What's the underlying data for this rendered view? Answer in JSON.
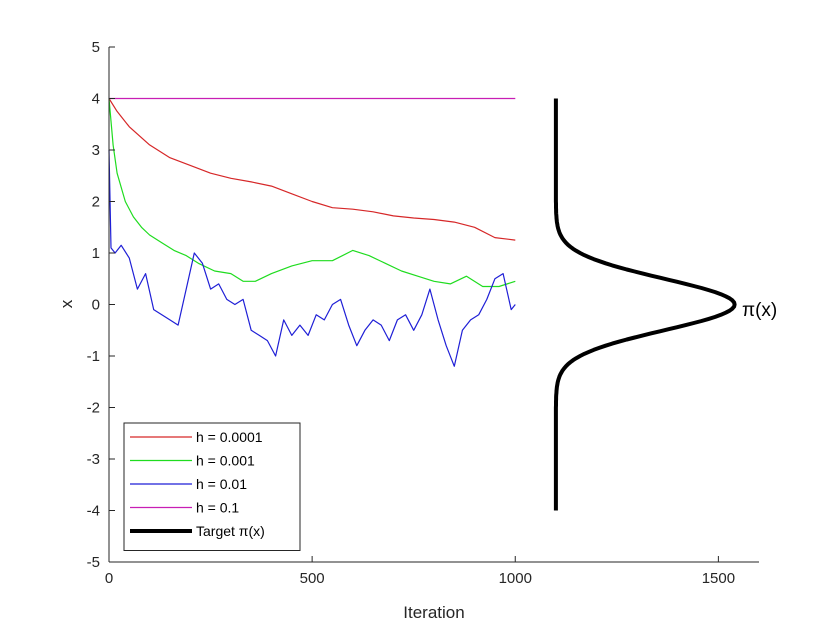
{
  "chart_data": {
    "type": "line",
    "title": "",
    "xlabel": "Iteration",
    "ylabel": "x",
    "xlim": [
      0,
      1600
    ],
    "ylim": [
      -5,
      5
    ],
    "xticks": [
      0,
      500,
      1000,
      1500
    ],
    "yticks": [
      -5,
      -4,
      -3,
      -2,
      -1,
      0,
      1,
      2,
      3,
      4,
      5
    ],
    "grid": false,
    "legend_position": "bottom-left",
    "series": [
      {
        "name": "h = 0.0001",
        "color": "#d62728",
        "x": [
          0,
          20,
          50,
          100,
          150,
          200,
          250,
          300,
          350,
          400,
          450,
          500,
          550,
          600,
          650,
          700,
          750,
          800,
          850,
          900,
          950,
          1000
        ],
        "values": [
          4.0,
          3.75,
          3.45,
          3.1,
          2.85,
          2.7,
          2.55,
          2.45,
          2.38,
          2.3,
          2.15,
          2.0,
          1.88,
          1.85,
          1.8,
          1.72,
          1.68,
          1.65,
          1.6,
          1.5,
          1.3,
          1.25
        ]
      },
      {
        "name": "h = 0.001",
        "color": "#1fdc1f",
        "x": [
          0,
          10,
          20,
          40,
          60,
          80,
          100,
          130,
          160,
          190,
          220,
          260,
          300,
          330,
          360,
          400,
          450,
          500,
          550,
          600,
          640,
          680,
          720,
          760,
          800,
          840,
          880,
          920,
          960,
          1000
        ],
        "values": [
          4.0,
          3.1,
          2.55,
          2.0,
          1.7,
          1.5,
          1.35,
          1.2,
          1.05,
          0.95,
          0.8,
          0.65,
          0.6,
          0.45,
          0.45,
          0.6,
          0.75,
          0.85,
          0.85,
          1.05,
          0.95,
          0.8,
          0.65,
          0.55,
          0.45,
          0.4,
          0.55,
          0.35,
          0.35,
          0.45
        ]
      },
      {
        "name": "h = 0.01",
        "color": "#1f1fd6",
        "x": [
          0,
          5,
          15,
          30,
          50,
          70,
          90,
          110,
          130,
          150,
          170,
          190,
          210,
          230,
          250,
          270,
          290,
          310,
          330,
          350,
          370,
          390,
          410,
          430,
          450,
          470,
          490,
          510,
          530,
          550,
          570,
          590,
          610,
          630,
          650,
          670,
          690,
          710,
          730,
          750,
          770,
          790,
          810,
          830,
          850,
          870,
          890,
          910,
          930,
          950,
          970,
          990,
          1000
        ],
        "values": [
          3.0,
          1.1,
          1.0,
          1.15,
          0.9,
          0.3,
          0.6,
          -0.1,
          -0.2,
          -0.3,
          -0.4,
          0.3,
          1.0,
          0.8,
          0.3,
          0.4,
          0.1,
          0.0,
          0.1,
          -0.5,
          -0.6,
          -0.7,
          -1.0,
          -0.3,
          -0.6,
          -0.4,
          -0.6,
          -0.2,
          -0.3,
          0.0,
          0.1,
          -0.4,
          -0.8,
          -0.5,
          -0.3,
          -0.4,
          -0.7,
          -0.3,
          -0.2,
          -0.5,
          -0.2,
          0.3,
          -0.3,
          -0.8,
          -1.2,
          -0.5,
          -0.3,
          -0.2,
          0.1,
          0.5,
          0.6,
          -0.1,
          0.0
        ]
      },
      {
        "name": "h = 0.1",
        "color": "#c81eb4",
        "x": [
          0,
          1000
        ],
        "values": [
          4.0,
          4.0
        ]
      }
    ],
    "target": {
      "name": "Target π(x)",
      "annotation": "π(x)",
      "color": "#000000",
      "baseline_x": 1100,
      "peak_x": 1540,
      "y_range": [
        -4,
        4
      ],
      "mean": 0,
      "sd": 0.5
    }
  }
}
